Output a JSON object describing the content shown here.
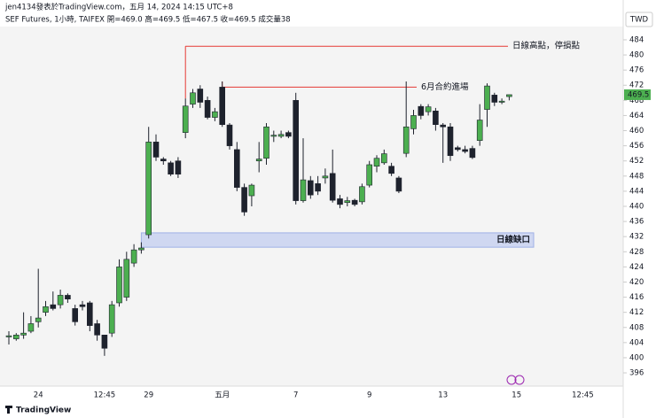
{
  "header": {
    "line1": "jen4134發表於TradingView.com，五月 14, 2024 14:15 UTC+8",
    "line2": "SEF Futures, 1小時, TAIFEX  開=469.0  高=469.5  低=467.5  收=469.5  成交量38",
    "currency": "TWD",
    "brand": "TradingView"
  },
  "chart_data": {
    "type": "candlestick",
    "categories": [
      null,
      null,
      null,
      null,
      "24",
      null,
      null,
      null,
      null,
      null,
      null,
      null,
      null,
      "12:45",
      null,
      null,
      null,
      null,
      null,
      "29",
      null,
      null,
      null,
      null,
      null,
      null,
      null,
      null,
      null,
      "五月",
      null,
      null,
      null,
      null,
      null,
      null,
      null,
      null,
      null,
      "7",
      null,
      null,
      null,
      null,
      null,
      null,
      null,
      null,
      null,
      "9",
      null,
      null,
      null,
      null,
      null,
      null,
      null,
      null,
      null,
      "13",
      null,
      null,
      null,
      null,
      null,
      null,
      null,
      null,
      null,
      "15",
      null,
      null,
      null,
      null,
      null,
      null,
      null,
      null,
      "12:45",
      null
    ],
    "open": [
      405.5,
      405,
      406,
      407,
      409.5,
      412,
      414,
      414,
      416.5,
      413,
      414,
      414.5,
      409,
      406,
      406.5,
      414.5,
      416,
      425,
      428.5,
      432.5,
      457,
      452.5,
      451.5,
      452,
      459.5,
      467,
      471,
      468,
      463.5,
      471.5,
      461.5,
      455,
      445,
      442.8,
      452,
      452.7,
      458.5,
      458.5,
      459.5,
      468,
      441.5,
      446.8,
      446,
      447.5,
      448.7,
      442,
      441,
      441.6,
      441.2,
      445.6,
      450.6,
      451.5,
      450.6,
      447.5,
      454,
      460.5,
      466.4,
      465,
      465.2,
      461.5,
      461,
      455.5,
      455,
      455.3,
      457.4,
      465.6,
      469.4,
      467.5,
      469,
      null,
      null,
      null,
      null,
      null,
      null,
      null,
      null,
      null,
      null,
      null
    ],
    "high": [
      407,
      406.5,
      412,
      411,
      423.5,
      415,
      417.5,
      418,
      417,
      414,
      415,
      415,
      410,
      406,
      415,
      426,
      428,
      430,
      430.5,
      461,
      459,
      453,
      452,
      453,
      468.5,
      471,
      472,
      469,
      466,
      473,
      462,
      457,
      446,
      446,
      457,
      462,
      460,
      460,
      460,
      470,
      458,
      448,
      448,
      450,
      455,
      443,
      442.5,
      442,
      446,
      452,
      453.5,
      455,
      451.5,
      448,
      473,
      465.5,
      467,
      467,
      466,
      462,
      462,
      456,
      456,
      456,
      467,
      472.5,
      470,
      468.5,
      469.5,
      null,
      null,
      null,
      null,
      null,
      null,
      null,
      null,
      null,
      null,
      null
    ],
    "low": [
      403.5,
      404.5,
      405,
      406.5,
      408,
      411,
      412.5,
      413,
      414.5,
      408.5,
      412.5,
      407,
      404.5,
      400.5,
      405.5,
      413.5,
      415,
      424,
      427.5,
      431.5,
      452,
      451,
      448,
      447.5,
      458,
      466,
      466,
      463,
      462.5,
      461,
      455,
      444,
      437.5,
      440,
      449,
      451,
      457,
      458,
      458,
      440.5,
      441,
      442,
      443,
      446,
      441,
      439.5,
      440,
      440,
      440.5,
      445,
      449,
      451,
      448,
      443.5,
      453,
      459,
      463,
      464,
      460,
      451.5,
      452,
      454.5,
      454,
      452.5,
      456,
      461,
      466.5,
      467,
      468,
      null,
      null,
      null,
      null,
      null,
      null,
      null,
      null,
      null,
      null,
      null
    ],
    "close": [
      405.8,
      406,
      406.5,
      409,
      410.5,
      413.5,
      413,
      416.5,
      415.5,
      409.5,
      413.5,
      408.5,
      406,
      402.5,
      414,
      424,
      426,
      428.5,
      429,
      457,
      453,
      452,
      448.5,
      448.5,
      466.5,
      470,
      467.5,
      463.5,
      465,
      461.6,
      456,
      445,
      438.5,
      445.6,
      452.5,
      461,
      458.8,
      459,
      458.5,
      441.5,
      447,
      443,
      444,
      448,
      441.6,
      440.5,
      441.5,
      440.5,
      445.2,
      451,
      452.7,
      453.9,
      448.7,
      444,
      461,
      464,
      464,
      466.3,
      461.6,
      461,
      453.4,
      455,
      454.5,
      452.9,
      462.8,
      471.8,
      467.5,
      467.8,
      469.5,
      null,
      null,
      null,
      null,
      null,
      null,
      null,
      null,
      null,
      null,
      null
    ],
    "up_color": "#4caf50",
    "down_color": "#1e222d",
    "ylim": [
      392.5,
      487.5
    ],
    "yticks": [
      396,
      400,
      404,
      408,
      412,
      416,
      420,
      424,
      428,
      432,
      436,
      440,
      444,
      448,
      452,
      456,
      460,
      464,
      468,
      472,
      476,
      480,
      484
    ],
    "annotations": [
      {
        "text": "日線高點，停損點",
        "y": 482.3,
        "color": "#e53935"
      },
      {
        "text": "6月合約進場",
        "y": 471.5,
        "color": "#e53935"
      }
    ],
    "gap": {
      "label": "日線缺口",
      "y0": 429.2,
      "y1": 433,
      "color": "#c5cff0"
    }
  }
}
